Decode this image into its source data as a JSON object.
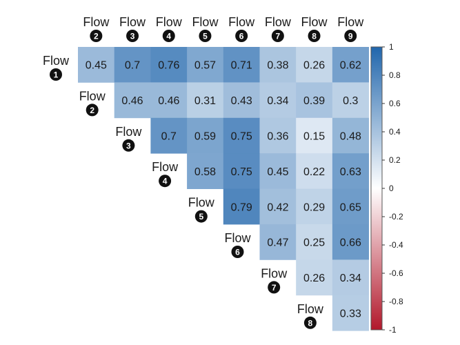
{
  "chart_data": {
    "type": "heatmap",
    "layout": "upper-triangular correlation matrix",
    "row_prefix": "Flow",
    "col_prefix": "Flow",
    "rows": [
      "1",
      "2",
      "3",
      "4",
      "5",
      "6",
      "7",
      "8"
    ],
    "columns": [
      "2",
      "3",
      "4",
      "5",
      "6",
      "7",
      "8",
      "9"
    ],
    "values": [
      [
        0.45,
        0.7,
        0.76,
        0.57,
        0.71,
        0.38,
        0.26,
        0.62
      ],
      [
        null,
        0.46,
        0.46,
        0.31,
        0.43,
        0.34,
        0.39,
        0.3
      ],
      [
        null,
        null,
        0.7,
        0.59,
        0.75,
        0.36,
        0.15,
        0.48
      ],
      [
        null,
        null,
        null,
        0.58,
        0.75,
        0.45,
        0.22,
        0.63
      ],
      [
        null,
        null,
        null,
        null,
        0.79,
        0.42,
        0.29,
        0.65
      ],
      [
        null,
        null,
        null,
        null,
        null,
        0.47,
        0.25,
        0.66
      ],
      [
        null,
        null,
        null,
        null,
        null,
        null,
        0.26,
        0.34
      ],
      [
        null,
        null,
        null,
        null,
        null,
        null,
        null,
        0.33
      ]
    ],
    "colorscale": {
      "min": -1,
      "max": 1,
      "ticks": [
        "1",
        "0.8",
        "0.6",
        "0.4",
        "0.2",
        "0",
        "-0.2",
        "-0.4",
        "-0.6",
        "-0.8",
        "-1"
      ],
      "tick_values": [
        1,
        0.8,
        0.6,
        0.4,
        0.2,
        0,
        -0.2,
        -0.4,
        -0.6,
        -0.8,
        -1
      ],
      "negative_color": "#b2182b",
      "mid_color": "#ffffff",
      "positive_color": "#2166ac"
    },
    "legend": "colorbar-right",
    "grid": false
  }
}
